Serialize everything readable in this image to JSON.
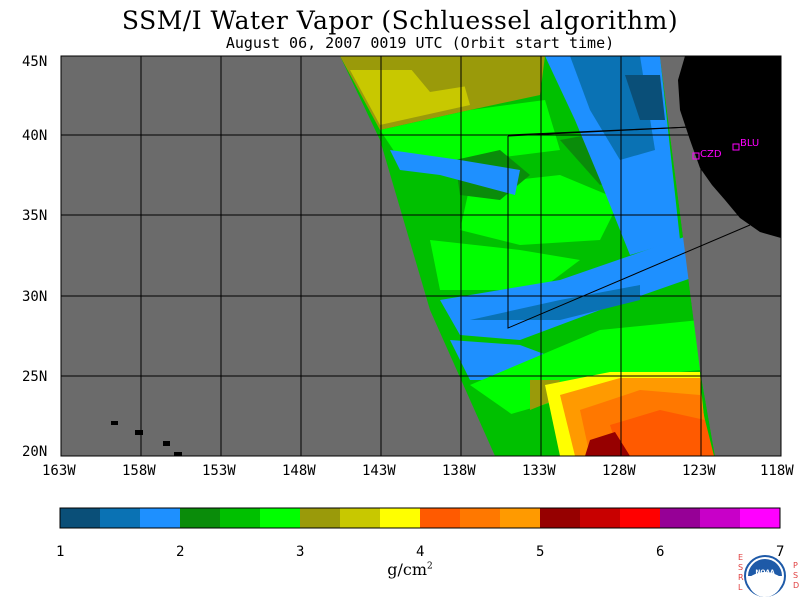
{
  "title": "SSM/I Water Vapor (Schluessel algorithm)",
  "subtitle": "August 06, 2007  0019 UTC  (Orbit start time)",
  "map": {
    "lat_labels": [
      "45N",
      "40N",
      "35N",
      "30N",
      "25N",
      "20N"
    ],
    "lon_labels": [
      "163W",
      "158W",
      "153W",
      "148W",
      "143W",
      "138W",
      "133W",
      "128W",
      "123W",
      "118W"
    ],
    "lon_range": [
      -163,
      -118
    ],
    "lat_range": [
      20,
      45
    ],
    "background_color": "#6b6b6b",
    "land_color": "#000000",
    "stations": [
      {
        "label": "CZD"
      },
      {
        "label": "BLU"
      }
    ]
  },
  "colorbar": {
    "labels": [
      "1",
      "2",
      "3",
      "4",
      "5",
      "6",
      "7"
    ],
    "unit": "g/cm",
    "unit_exp": "2",
    "colors": [
      "#0a4f78",
      "#0a72b4",
      "#1e90ff",
      "#0a8c0a",
      "#00c000",
      "#00ff00",
      "#9a9a0a",
      "#c8c800",
      "#ffff00",
      "#ff5a00",
      "#ff7800",
      "#ff9a00",
      "#960000",
      "#c80000",
      "#ff0000",
      "#960096",
      "#c800c8",
      "#ff00ff"
    ]
  },
  "logo": {
    "left_text": "ESRL",
    "right_text": "PSD",
    "center_text": "NOAA"
  }
}
